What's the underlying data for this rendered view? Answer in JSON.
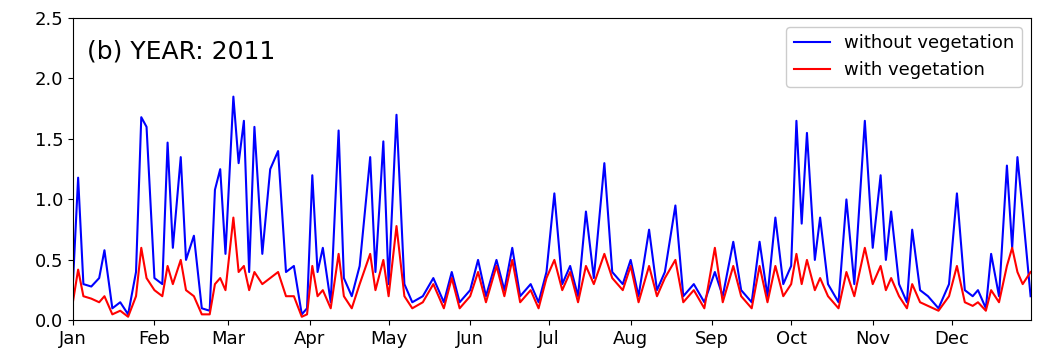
{
  "chart_data": {
    "type": "line",
    "annotation": "(b) YEAR: 2011",
    "x": [
      1,
      3,
      5,
      8,
      11,
      13,
      16,
      19,
      22,
      25,
      27,
      29,
      32,
      35,
      37,
      39,
      42,
      44,
      47,
      50,
      53,
      55,
      57,
      59,
      62,
      64,
      66,
      68,
      70,
      73,
      76,
      79,
      82,
      85,
      88,
      90,
      92,
      94,
      96,
      99,
      102,
      104,
      107,
      110,
      114,
      116,
      119,
      121,
      124,
      127,
      130,
      134,
      138,
      142,
      145,
      148,
      152,
      155,
      158,
      162,
      165,
      168,
      171,
      175,
      178,
      181,
      184,
      187,
      190,
      193,
      196,
      199,
      203,
      206,
      210,
      213,
      216,
      220,
      223,
      226,
      230,
      233,
      237,
      241,
      245,
      248,
      252,
      255,
      259,
      262,
      265,
      268,
      271,
      274,
      276,
      278,
      280,
      283,
      285,
      288,
      292,
      295,
      298,
      302,
      305,
      308,
      310,
      312,
      315,
      318,
      320,
      323,
      326,
      330,
      334,
      337,
      340,
      343,
      345,
      348,
      350,
      353,
      356,
      358,
      360,
      362,
      365
    ],
    "series": [
      {
        "name": "without vegetation",
        "color": "#0000ff",
        "values": [
          0.3,
          1.18,
          0.3,
          0.28,
          0.35,
          0.58,
          0.1,
          0.15,
          0.05,
          0.4,
          1.68,
          1.6,
          0.35,
          0.3,
          1.47,
          0.6,
          1.35,
          0.5,
          0.7,
          0.1,
          0.08,
          1.08,
          1.25,
          0.55,
          1.85,
          1.3,
          1.65,
          0.4,
          1.6,
          0.55,
          1.25,
          1.4,
          0.4,
          0.45,
          0.05,
          0.1,
          1.2,
          0.4,
          0.6,
          0.15,
          1.57,
          0.35,
          0.2,
          0.45,
          1.35,
          0.4,
          1.48,
          0.3,
          1.7,
          0.3,
          0.15,
          0.2,
          0.35,
          0.15,
          0.4,
          0.15,
          0.25,
          0.5,
          0.2,
          0.5,
          0.25,
          0.6,
          0.2,
          0.3,
          0.15,
          0.4,
          1.05,
          0.3,
          0.45,
          0.2,
          0.9,
          0.35,
          1.3,
          0.4,
          0.3,
          0.5,
          0.2,
          0.75,
          0.25,
          0.4,
          0.95,
          0.2,
          0.3,
          0.15,
          0.4,
          0.2,
          0.65,
          0.25,
          0.15,
          0.65,
          0.2,
          0.85,
          0.3,
          0.45,
          1.65,
          0.8,
          1.55,
          0.5,
          0.85,
          0.3,
          0.15,
          1.0,
          0.3,
          1.65,
          0.6,
          1.2,
          0.5,
          0.9,
          0.3,
          0.15,
          0.75,
          0.25,
          0.2,
          0.1,
          0.3,
          1.05,
          0.25,
          0.2,
          0.25,
          0.1,
          0.55,
          0.2,
          1.28,
          0.6,
          1.35,
          0.9,
          0.2
        ]
      },
      {
        "name": "with vegetation",
        "color": "#ff0000",
        "values": [
          0.15,
          0.42,
          0.2,
          0.18,
          0.15,
          0.2,
          0.05,
          0.08,
          0.03,
          0.2,
          0.6,
          0.35,
          0.25,
          0.2,
          0.45,
          0.3,
          0.5,
          0.25,
          0.2,
          0.05,
          0.05,
          0.3,
          0.35,
          0.25,
          0.85,
          0.4,
          0.45,
          0.25,
          0.4,
          0.3,
          0.35,
          0.4,
          0.2,
          0.2,
          0.03,
          0.05,
          0.45,
          0.2,
          0.25,
          0.1,
          0.55,
          0.2,
          0.1,
          0.3,
          0.55,
          0.25,
          0.5,
          0.2,
          0.78,
          0.2,
          0.1,
          0.15,
          0.3,
          0.1,
          0.35,
          0.1,
          0.2,
          0.4,
          0.15,
          0.45,
          0.2,
          0.5,
          0.15,
          0.25,
          0.1,
          0.35,
          0.5,
          0.25,
          0.4,
          0.15,
          0.45,
          0.3,
          0.55,
          0.35,
          0.25,
          0.45,
          0.15,
          0.45,
          0.2,
          0.35,
          0.5,
          0.15,
          0.25,
          0.1,
          0.6,
          0.15,
          0.45,
          0.2,
          0.1,
          0.45,
          0.15,
          0.45,
          0.2,
          0.3,
          0.55,
          0.3,
          0.5,
          0.25,
          0.35,
          0.2,
          0.1,
          0.4,
          0.2,
          0.6,
          0.3,
          0.45,
          0.25,
          0.35,
          0.2,
          0.1,
          0.3,
          0.15,
          0.12,
          0.08,
          0.2,
          0.45,
          0.15,
          0.12,
          0.15,
          0.08,
          0.25,
          0.15,
          0.45,
          0.6,
          0.4,
          0.3,
          0.4
        ]
      }
    ],
    "xlim": [
      1,
      365
    ],
    "xticks": [
      {
        "value": 1,
        "label": "Jan"
      },
      {
        "value": 32,
        "label": "Feb"
      },
      {
        "value": 60,
        "label": "Mar"
      },
      {
        "value": 91,
        "label": "Apr"
      },
      {
        "value": 121,
        "label": "May"
      },
      {
        "value": 152,
        "label": "Jun"
      },
      {
        "value": 182,
        "label": "Jul"
      },
      {
        "value": 213,
        "label": "Aug"
      },
      {
        "value": 244,
        "label": "Sep"
      },
      {
        "value": 274,
        "label": "Oct"
      },
      {
        "value": 305,
        "label": "Nov"
      },
      {
        "value": 335,
        "label": "Dec"
      }
    ],
    "ylim": [
      0,
      2.5
    ],
    "yticks": [
      {
        "value": 0,
        "label": "0.0"
      },
      0.5,
      {
        "value": 1,
        "label": "1.0"
      },
      1.5,
      {
        "value": 2,
        "label": "2.0"
      },
      2.5
    ],
    "legend": "upper right",
    "grid": false
  }
}
